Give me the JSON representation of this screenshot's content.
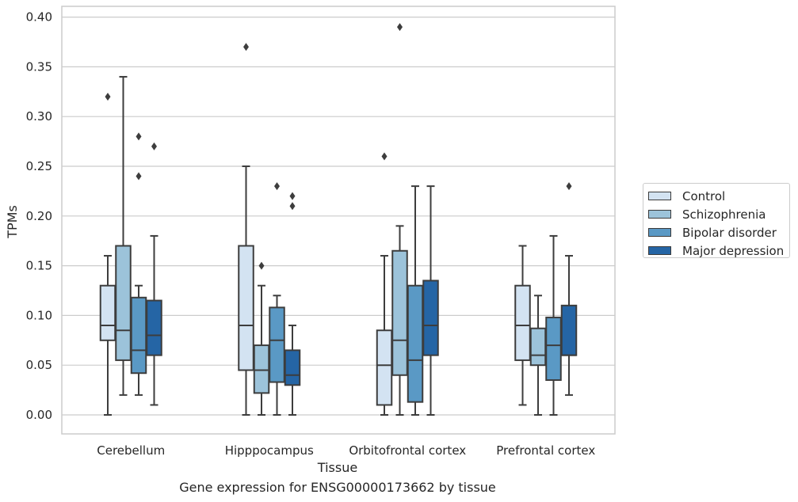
{
  "chart_data": {
    "type": "boxplot",
    "xlabel": "Tissue",
    "ylabel": "TPMs",
    "caption": "Gene expression for ENSG00000173662 by tissue",
    "categories": [
      "Cerebellum",
      "Hipppocampus",
      "Orbitofrontal cortex",
      "Prefrontal cortex"
    ],
    "ylim": [
      -0.02,
      0.41
    ],
    "yticks": [
      "0.00",
      "0.05",
      "0.10",
      "0.15",
      "0.20",
      "0.25",
      "0.30",
      "0.35",
      "0.40"
    ],
    "grid": "horizontal",
    "legend_position": "right",
    "series": [
      {
        "name": "Control",
        "color": "#d3e3f2",
        "boxes": [
          {
            "whislo": 0.0,
            "q1": 0.075,
            "med": 0.09,
            "q3": 0.13,
            "whishi": 0.16,
            "fliers": [
              0.32
            ]
          },
          {
            "whislo": 0.0,
            "q1": 0.045,
            "med": 0.09,
            "q3": 0.17,
            "whishi": 0.25,
            "fliers": [
              0.37
            ]
          },
          {
            "whislo": 0.0,
            "q1": 0.01,
            "med": 0.05,
            "q3": 0.085,
            "whishi": 0.16,
            "fliers": [
              0.26
            ]
          },
          {
            "whislo": 0.01,
            "q1": 0.055,
            "med": 0.09,
            "q3": 0.13,
            "whishi": 0.17,
            "fliers": []
          }
        ]
      },
      {
        "name": "Schizophrenia",
        "color": "#9cc3da",
        "boxes": [
          {
            "whislo": 0.02,
            "q1": 0.055,
            "med": 0.085,
            "q3": 0.17,
            "whishi": 0.34,
            "fliers": []
          },
          {
            "whislo": 0.0,
            "q1": 0.022,
            "med": 0.045,
            "q3": 0.07,
            "whishi": 0.13,
            "fliers": [
              0.15
            ]
          },
          {
            "whislo": 0.0,
            "q1": 0.04,
            "med": 0.075,
            "q3": 0.165,
            "whishi": 0.19,
            "fliers": [
              0.39
            ]
          },
          {
            "whislo": 0.0,
            "q1": 0.05,
            "med": 0.06,
            "q3": 0.087,
            "whishi": 0.12,
            "fliers": []
          }
        ]
      },
      {
        "name": "Bipolar disorder",
        "color": "#5a99c5",
        "boxes": [
          {
            "whislo": 0.02,
            "q1": 0.042,
            "med": 0.065,
            "q3": 0.118,
            "whishi": 0.13,
            "fliers": [
              0.24,
              0.28
            ]
          },
          {
            "whislo": 0.0,
            "q1": 0.033,
            "med": 0.075,
            "q3": 0.108,
            "whishi": 0.12,
            "fliers": [
              0.23
            ]
          },
          {
            "whislo": 0.0,
            "q1": 0.013,
            "med": 0.055,
            "q3": 0.13,
            "whishi": 0.23,
            "fliers": []
          },
          {
            "whislo": 0.0,
            "q1": 0.035,
            "med": 0.07,
            "q3": 0.098,
            "whishi": 0.18,
            "fliers": []
          }
        ]
      },
      {
        "name": "Major depression",
        "color": "#2565a5",
        "boxes": [
          {
            "whislo": 0.01,
            "q1": 0.06,
            "med": 0.08,
            "q3": 0.115,
            "whishi": 0.18,
            "fliers": [
              0.27
            ]
          },
          {
            "whislo": 0.0,
            "q1": 0.03,
            "med": 0.04,
            "q3": 0.065,
            "whishi": 0.09,
            "fliers": [
              0.21,
              0.22
            ]
          },
          {
            "whislo": 0.0,
            "q1": 0.06,
            "med": 0.09,
            "q3": 0.135,
            "whishi": 0.23,
            "fliers": []
          },
          {
            "whislo": 0.02,
            "q1": 0.06,
            "med": 0.06,
            "q3": 0.11,
            "whishi": 0.16,
            "fliers": [
              0.23
            ]
          }
        ]
      }
    ]
  }
}
